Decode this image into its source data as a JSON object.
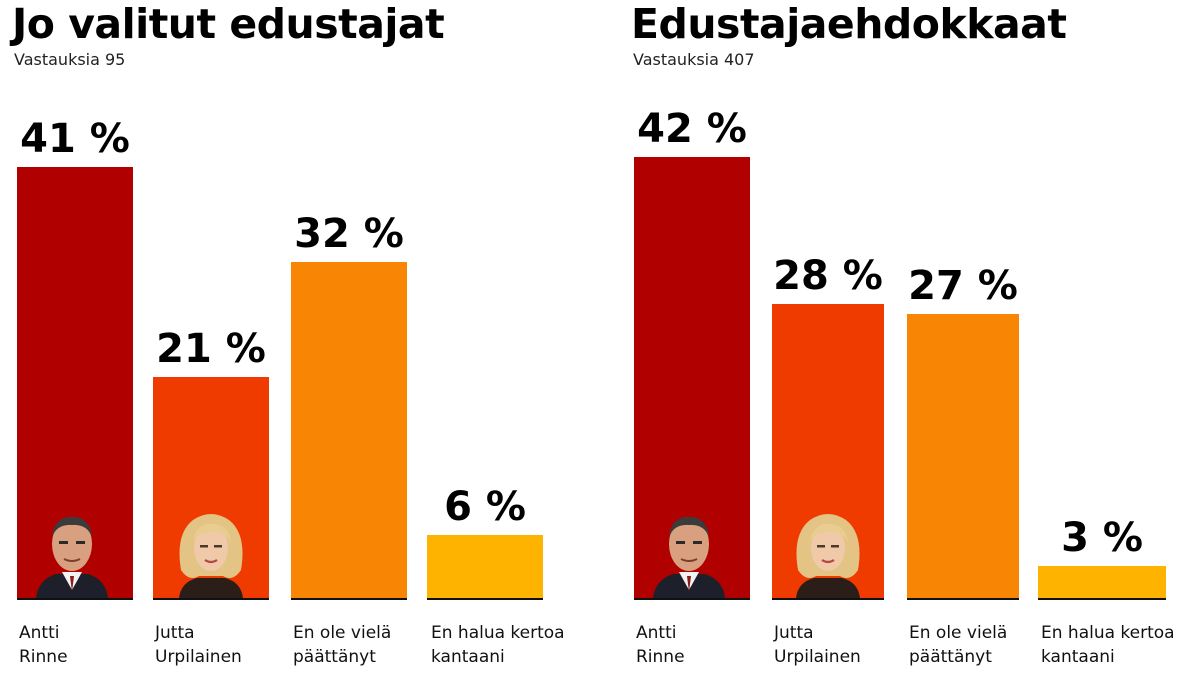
{
  "colors": {
    "dark_red": "#b00000",
    "red_orange": "#ef3a00",
    "orange": "#f98504",
    "yellow": "#fdb300"
  },
  "chart_data": [
    {
      "type": "bar",
      "title": "Jo valitut edustajat",
      "subtitle": "Vastauksia 95",
      "categories": [
        "Antti\nRinne",
        "Jutta\nUrpilainen",
        "En ole vielä\npäättänyt",
        "En halua kertoa\nkantaani"
      ],
      "values": [
        41,
        21,
        32,
        6
      ],
      "value_labels": [
        "41 %",
        "21 %",
        "32 %",
        "6 %"
      ],
      "portraits": [
        "man-portrait-icon",
        "woman-portrait-icon",
        null,
        null
      ],
      "ylim": [
        0,
        45
      ]
    },
    {
      "type": "bar",
      "title": "Edustajaehdokkaat",
      "subtitle": "Vastauksia 407",
      "categories": [
        "Antti\nRinne",
        "Jutta\nUrpilainen",
        "En ole vielä\npäättänyt",
        "En halua kertoa\nkantaani"
      ],
      "values": [
        42,
        28,
        27,
        3
      ],
      "value_labels": [
        "42 %",
        "28 %",
        "27 %",
        "3 %"
      ],
      "portraits": [
        "man-portrait-icon",
        "woman-portrait-icon",
        null,
        null
      ],
      "ylim": [
        0,
        45
      ]
    }
  ]
}
